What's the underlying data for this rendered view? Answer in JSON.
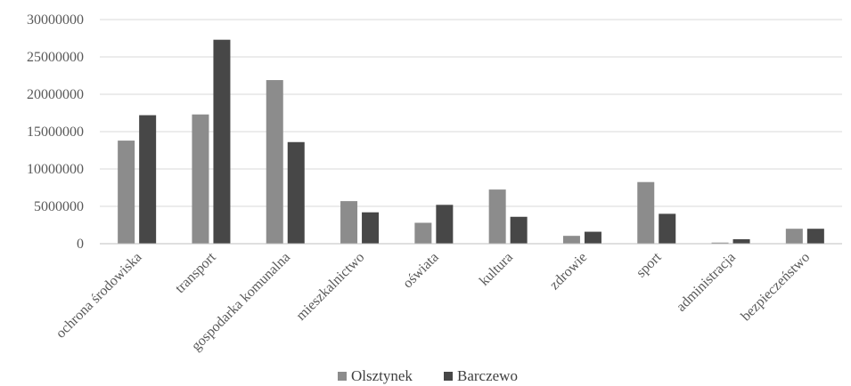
{
  "chart_data": {
    "type": "bar",
    "categories": [
      "ochrona środowiska",
      "transport",
      "gospodarka komunalna",
      "mieszkalnictwo",
      "oświata",
      "kultura",
      "zdrowie",
      "sport",
      "administracja",
      "bezpieczeństwo"
    ],
    "series": [
      {
        "name": "Olsztynek",
        "color": "#8c8c8c",
        "values": [
          13800000,
          17300000,
          21900000,
          5700000,
          2800000,
          7250000,
          1050000,
          8250000,
          150000,
          2000000
        ]
      },
      {
        "name": "Barczewo",
        "color": "#474747",
        "values": [
          17200000,
          27300000,
          13600000,
          4200000,
          5200000,
          3600000,
          1600000,
          4000000,
          600000,
          2000000
        ]
      }
    ],
    "ylim": [
      0,
      30000000
    ],
    "yticks": [
      0,
      5000000,
      10000000,
      15000000,
      20000000,
      25000000,
      30000000
    ],
    "ytick_labels": [
      "0",
      "5000000",
      "10000000",
      "15000000",
      "20000000",
      "25000000",
      "30000000"
    ],
    "grid": true,
    "legend_position": "bottom",
    "title": "",
    "xlabel": "",
    "ylabel": ""
  }
}
